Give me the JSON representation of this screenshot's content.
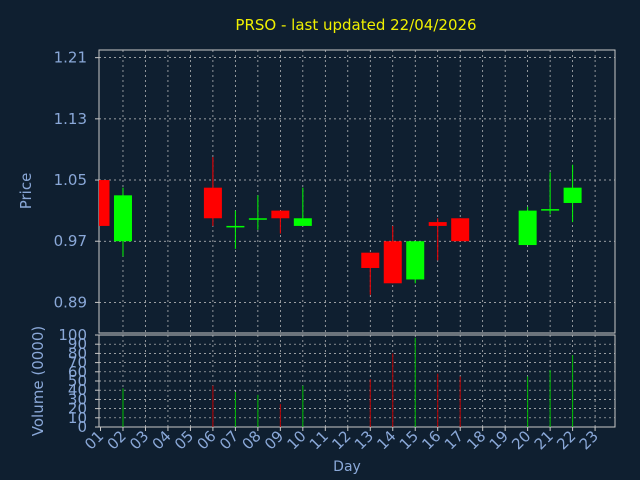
{
  "chart_data": {
    "type": "candlestick",
    "title": "PRSO - last updated 22/04/2026",
    "xlabel": "Day",
    "price_panel": {
      "ylabel": "Price",
      "yticks": [
        "1.21",
        "1.13",
        "1.05",
        "0.97",
        "0.89"
      ],
      "ylim": [
        0.85,
        1.22
      ]
    },
    "volume_panel": {
      "ylabel": "Volume (0000)",
      "yticks": [
        "100",
        "90",
        "80",
        "70",
        "60",
        "50",
        "40",
        "30",
        "20",
        "10",
        "0"
      ],
      "ylim": [
        0,
        100
      ]
    },
    "x_tick_labels": [
      "01",
      "02",
      "03",
      "04",
      "05",
      "06",
      "07",
      "08",
      "09",
      "10",
      "11",
      "12",
      "13",
      "14",
      "15",
      "16",
      "17",
      "18",
      "19",
      "20",
      "21",
      "22",
      "23"
    ],
    "candles": [
      {
        "day": 1,
        "open": 1.05,
        "high": 1.05,
        "low": 0.99,
        "close": 0.99,
        "volume": 0,
        "dir": "down"
      },
      {
        "day": 2,
        "open": 0.97,
        "high": 1.04,
        "low": 0.95,
        "close": 1.03,
        "volume": 42,
        "dir": "up"
      },
      {
        "day": 6,
        "open": 1.04,
        "high": 1.08,
        "low": 0.99,
        "close": 1.0,
        "volume": 45,
        "dir": "down"
      },
      {
        "day": 7,
        "open": 0.99,
        "high": 1.01,
        "low": 0.96,
        "close": 0.99,
        "volume": 38,
        "dir": "up"
      },
      {
        "day": 8,
        "open": 1.0,
        "high": 1.03,
        "low": 0.985,
        "close": 1.0,
        "volume": 35,
        "dir": "up"
      },
      {
        "day": 9,
        "open": 1.01,
        "high": 1.01,
        "low": 0.98,
        "close": 1.0,
        "volume": 25,
        "dir": "down"
      },
      {
        "day": 10,
        "open": 0.99,
        "high": 1.04,
        "low": 0.99,
        "close": 1.0,
        "volume": 45,
        "dir": "up"
      },
      {
        "day": 13,
        "open": 0.955,
        "high": 0.955,
        "low": 0.9,
        "close": 0.935,
        "volume": 52,
        "dir": "down"
      },
      {
        "day": 14,
        "open": 0.97,
        "high": 0.99,
        "low": 0.915,
        "close": 0.915,
        "volume": 80,
        "dir": "down"
      },
      {
        "day": 15,
        "open": 0.92,
        "high": 0.97,
        "low": 0.915,
        "close": 0.97,
        "volume": 97,
        "dir": "up"
      },
      {
        "day": 16,
        "open": 0.995,
        "high": 1.0,
        "low": 0.945,
        "close": 0.99,
        "volume": 58,
        "dir": "down"
      },
      {
        "day": 17,
        "open": 1.0,
        "high": 1.0,
        "low": 0.97,
        "close": 0.97,
        "volume": 55,
        "dir": "down"
      },
      {
        "day": 20,
        "open": 0.965,
        "high": 1.015,
        "low": 0.965,
        "close": 1.01,
        "volume": 55,
        "dir": "up"
      },
      {
        "day": 21,
        "open": 1.01,
        "high": 1.06,
        "low": 1.005,
        "close": 1.012,
        "volume": 62,
        "dir": "up"
      },
      {
        "day": 22,
        "open": 1.02,
        "high": 1.07,
        "low": 0.995,
        "close": 1.04,
        "volume": 78,
        "dir": "up"
      }
    ],
    "grid": true,
    "colors": {
      "background": "#0f1f30",
      "frame": "#c8c8c8",
      "grid": "#c8c8c8",
      "title": "#f0f000",
      "axis_text": "#8aa8d8",
      "up": "#00ff00",
      "down": "#ff0000",
      "volume_up": "#00c000",
      "volume_down": "#c00000"
    }
  }
}
